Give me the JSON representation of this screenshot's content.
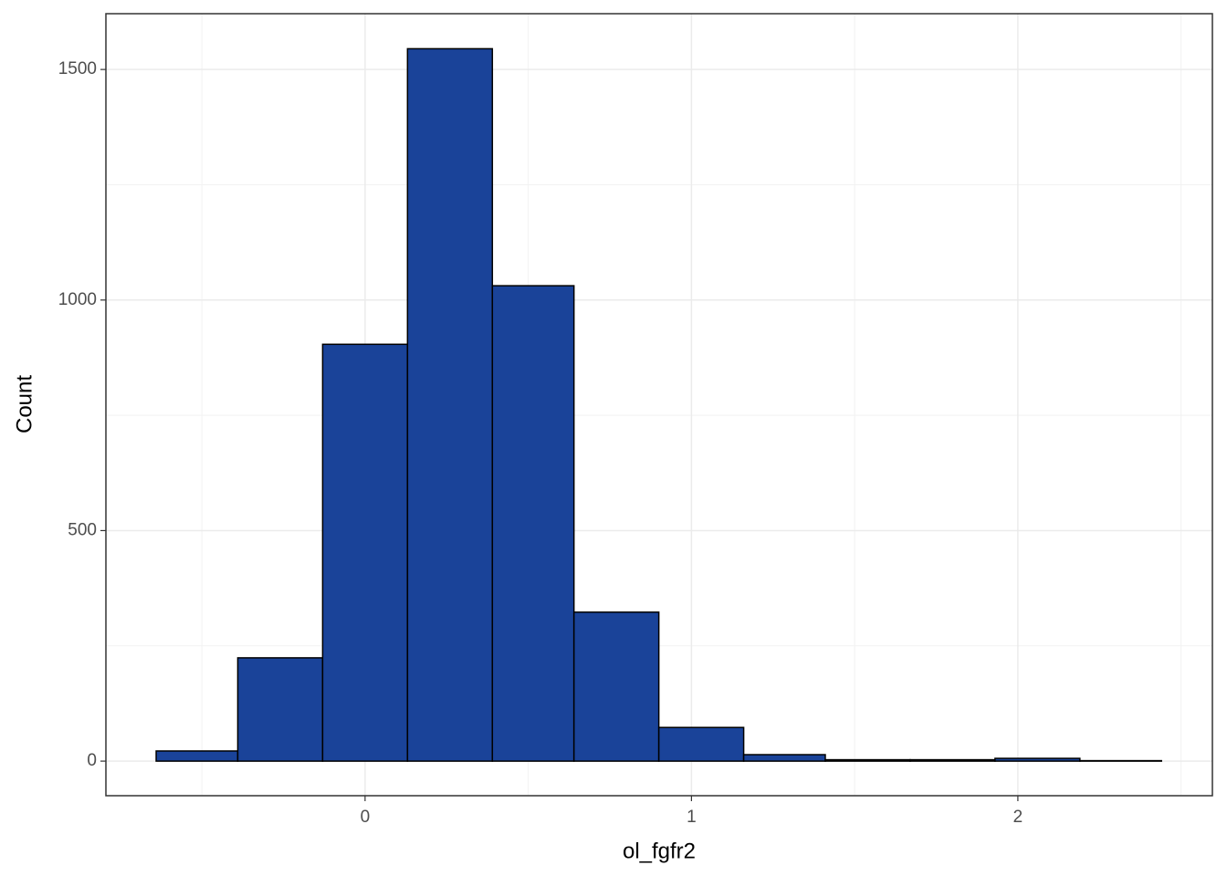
{
  "chart_data": {
    "type": "histogram",
    "xlabel": "ol_fgfr2",
    "ylabel": "Count",
    "bins": [
      -0.64,
      -0.39,
      -0.13,
      0.13,
      0.39,
      0.64,
      0.9,
      1.16,
      1.41,
      1.67,
      1.93,
      2.19,
      2.44
    ],
    "values": [
      22,
      224,
      904,
      1545,
      1031,
      323,
      73,
      14,
      3,
      3,
      6,
      1
    ],
    "color": "#1a4399",
    "edgecolor": "#000000",
    "xlim": [
      -0.794,
      2.596
    ],
    "ylim": [
      -75,
      1621
    ],
    "xticks": [
      0,
      1,
      2
    ],
    "yticks": [
      0,
      500,
      1000,
      1500
    ],
    "minor_xticks": [
      -0.5,
      0.5,
      1.5,
      2.5
    ],
    "minor_yticks": [
      250,
      750,
      1250
    ],
    "grid": true
  }
}
